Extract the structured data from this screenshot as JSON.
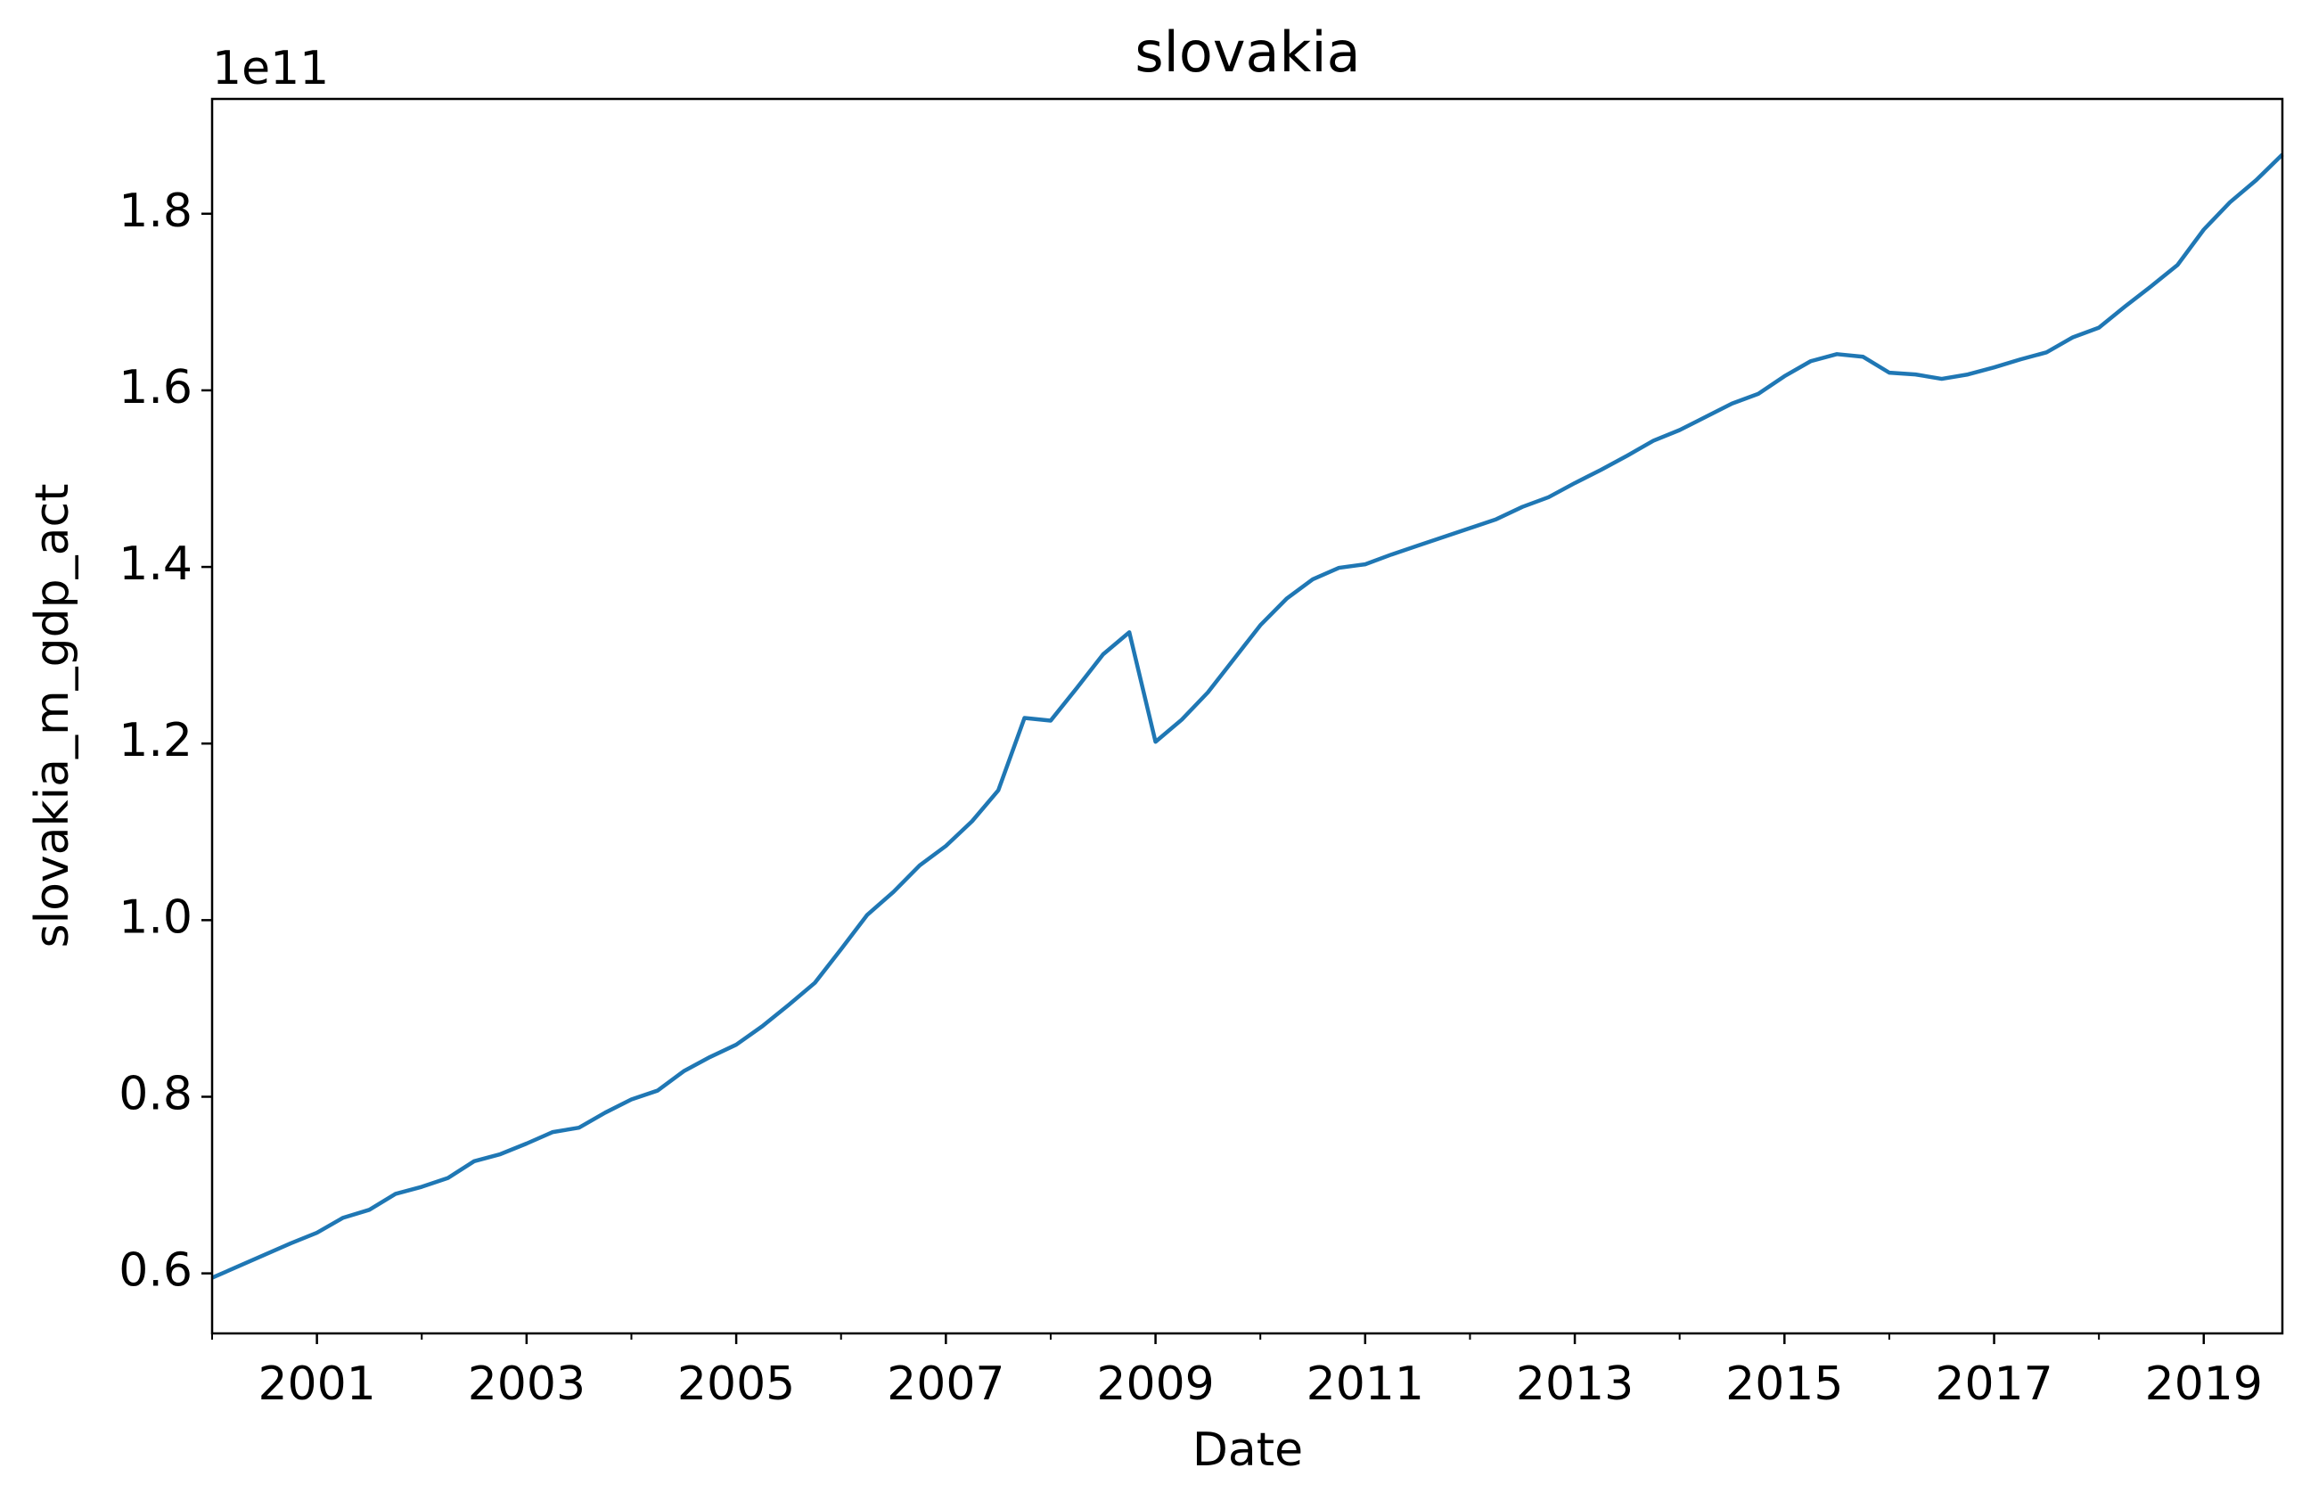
{
  "chart_data": {
    "type": "line",
    "title": "slovakia",
    "x_label": "Date",
    "y_label": "slovakia_m_gdp_act",
    "y_offset_text": "1e11",
    "x": [
      2000,
      2000.25,
      2000.5,
      2000.75,
      2001,
      2001.25,
      2001.5,
      2001.75,
      2002,
      2002.25,
      2002.5,
      2002.75,
      2003,
      2003.25,
      2003.5,
      2003.75,
      2004,
      2004.25,
      2004.5,
      2004.75,
      2005,
      2005.25,
      2005.5,
      2005.75,
      2006,
      2006.25,
      2006.5,
      2006.75,
      2007,
      2007.25,
      2007.5,
      2007.75,
      2008,
      2008.25,
      2008.5,
      2008.75,
      2009,
      2009.25,
      2009.5,
      2009.75,
      2010,
      2010.25,
      2010.5,
      2010.75,
      2011,
      2011.25,
      2011.5,
      2011.75,
      2012,
      2012.25,
      2012.5,
      2012.75,
      2013,
      2013.25,
      2013.5,
      2013.75,
      2014,
      2014.25,
      2014.5,
      2014.75,
      2015,
      2015.25,
      2015.5,
      2015.75,
      2016,
      2016.25,
      2016.5,
      2016.75,
      2017,
      2017.25,
      2017.5,
      2017.75,
      2018,
      2018.25,
      2018.5,
      2018.75,
      2019,
      2019.25,
      2019.5,
      2019.75
    ],
    "values": [
      0.595,
      0.608,
      0.621,
      0.634,
      0.646,
      0.663,
      0.672,
      0.69,
      0.698,
      0.708,
      0.727,
      0.735,
      0.747,
      0.76,
      0.765,
      0.782,
      0.797,
      0.807,
      0.829,
      0.845,
      0.859,
      0.88,
      0.904,
      0.929,
      0.967,
      1.006,
      1.032,
      1.062,
      1.084,
      1.112,
      1.147,
      1.229,
      1.226,
      1.263,
      1.301,
      1.326,
      1.202,
      1.227,
      1.258,
      1.296,
      1.334,
      1.364,
      1.386,
      1.399,
      1.403,
      1.414,
      1.424,
      1.434,
      1.444,
      1.454,
      1.468,
      1.479,
      1.495,
      1.51,
      1.526,
      1.543,
      1.555,
      1.57,
      1.585,
      1.596,
      1.616,
      1.633,
      1.641,
      1.638,
      1.62,
      1.618,
      1.613,
      1.618,
      1.626,
      1.635,
      1.643,
      1.66,
      1.671,
      1.695,
      1.718,
      1.742,
      1.782,
      1.813,
      1.838,
      1.867
    ],
    "color": "#1f77b4",
    "xlim": [
      2000,
      2019.75
    ],
    "xticks": [
      2001,
      2003,
      2005,
      2007,
      2009,
      2011,
      2013,
      2015,
      2017,
      2019
    ],
    "xminorticks": [
      2000,
      2002,
      2004,
      2006,
      2008,
      2010,
      2012,
      2014,
      2016,
      2018
    ],
    "ylim": [
      0.532,
      1.93
    ],
    "yticks": [
      {
        "value": 0.6,
        "label": "0.6"
      },
      {
        "value": 0.8,
        "label": "0.8"
      },
      {
        "value": 1.0,
        "label": "1.0"
      },
      {
        "value": 1.2,
        "label": "1.2"
      },
      {
        "value": 1.4,
        "label": "1.4"
      },
      {
        "value": 1.6,
        "label": "1.6"
      },
      {
        "value": 1.8,
        "label": "1.8"
      }
    ],
    "grid": false
  }
}
